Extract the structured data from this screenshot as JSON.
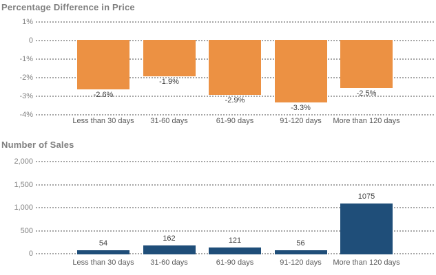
{
  "chart_data": [
    {
      "type": "bar",
      "title": "Percentage Difference in Price",
      "categories": [
        "Less than 30 days",
        "31-60 days",
        "61-90 days",
        "91-120 days",
        "More than 120 days"
      ],
      "values": [
        -2.6,
        -1.9,
        -2.9,
        -3.3,
        -2.5
      ],
      "value_labels": [
        "-2.6%",
        "-1.9%",
        "-2.9%",
        "-3.3%",
        "-2.5%"
      ],
      "value_label_position": "below-bar",
      "bar_color": "#EC9143",
      "ylim": [
        -4,
        1
      ],
      "y_ticks": [
        1,
        0,
        -1,
        -2,
        -3,
        -4
      ],
      "y_tick_labels": [
        "1%",
        "0",
        "-1%",
        "-2%",
        "-3%",
        "-4%"
      ],
      "grid": "horizontal-dotted",
      "legend": "none"
    },
    {
      "type": "bar",
      "title": "Number of Sales",
      "categories": [
        "Less than 30 days",
        "31-60 days",
        "61-90 days",
        "91-120 days",
        "More than 120 days"
      ],
      "values": [
        54,
        162,
        121,
        56,
        1075
      ],
      "value_labels": [
        "54",
        "162",
        "121",
        "56",
        "1075"
      ],
      "value_label_position": "above-bar",
      "bar_color": "#1F4E79",
      "ylim": [
        0,
        2000
      ],
      "y_ticks": [
        2000,
        1500,
        1000,
        500,
        0
      ],
      "y_tick_labels": [
        "2,000",
        "1,500",
        "1,000",
        "500",
        "0"
      ],
      "grid": "horizontal-dotted",
      "legend": "none"
    }
  ],
  "colors": {
    "orange_bar": "#EC9143",
    "blue_bar": "#1F4E79",
    "title_text": "#7F7F7F",
    "axis_tick_text": "#808080",
    "category_text": "#595959",
    "value_text": "#3F3F3F",
    "gridline": "#A6A6A6",
    "background": "#FFFFFF"
  }
}
